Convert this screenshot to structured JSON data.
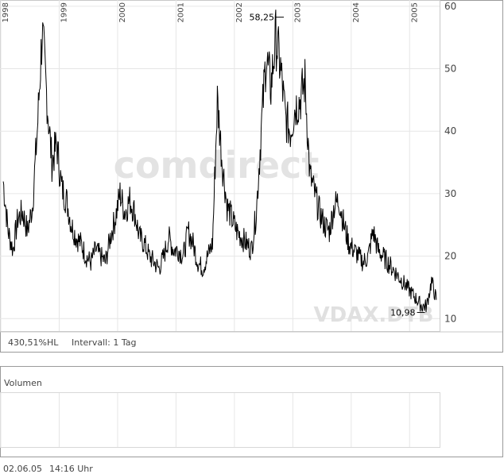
{
  "chart_data": {
    "type": "line",
    "title": "",
    "xlabel": "",
    "ylabel": "",
    "x_axis": {
      "labels": [
        "1998",
        "1999",
        "2000",
        "2001",
        "2002",
        "2003",
        "2004",
        "2005"
      ],
      "range": [
        "1998-01",
        "2005-06"
      ]
    },
    "ylim": [
      8,
      61
    ],
    "yticks": [
      10,
      20,
      30,
      40,
      50,
      60
    ],
    "grid": true,
    "series": [
      {
        "x": [
          "1998-01",
          "1998-02",
          "1998-03",
          "1998-04",
          "1998-05",
          "1998-06",
          "1998-07",
          "1998-08",
          "1998-09",
          "1998-10",
          "1998-11",
          "1998-12",
          "1999-01",
          "1999-02",
          "1999-03",
          "1999-04",
          "1999-05",
          "1999-06",
          "1999-07",
          "1999-08",
          "1999-09",
          "1999-10",
          "1999-11",
          "1999-12",
          "2000-01",
          "2000-02",
          "2000-03",
          "2000-04",
          "2000-05",
          "2000-06",
          "2000-07",
          "2000-08",
          "2000-09",
          "2000-10",
          "2000-11",
          "2000-12",
          "2001-01",
          "2001-02",
          "2001-03",
          "2001-04",
          "2001-05",
          "2001-06",
          "2001-07",
          "2001-08",
          "2001-09",
          "2001-10",
          "2001-11",
          "2001-12",
          "2002-01",
          "2002-02",
          "2002-03",
          "2002-04",
          "2002-05",
          "2002-06",
          "2002-07",
          "2002-08",
          "2002-09",
          "2002-10",
          "2002-11",
          "2002-12",
          "2003-01",
          "2003-02",
          "2003-03",
          "2003-04",
          "2003-05",
          "2003-06",
          "2003-07",
          "2003-08",
          "2003-09",
          "2003-10",
          "2003-11",
          "2003-12",
          "2004-01",
          "2004-02",
          "2004-03",
          "2004-04",
          "2004-05",
          "2004-06",
          "2004-07",
          "2004-08",
          "2004-09",
          "2004-10",
          "2004-11",
          "2004-12",
          "2005-01",
          "2005-02",
          "2005-03",
          "2005-04",
          "2005-05",
          "2005-06"
        ],
        "values": [
          32,
          24,
          21,
          26,
          27,
          24,
          28,
          40,
          56,
          45,
          35,
          38,
          31,
          29,
          25,
          23,
          22,
          20,
          19,
          21,
          20,
          19,
          23,
          26,
          30,
          27,
          29,
          27,
          23,
          22,
          20,
          19,
          18,
          20,
          23,
          21,
          21,
          20,
          24,
          22,
          19,
          18,
          20,
          22,
          45,
          35,
          28,
          26,
          24,
          23,
          22,
          21,
          27,
          40,
          52,
          47,
          55,
          50,
          42,
          40,
          44,
          45,
          48,
          33,
          30,
          27,
          25,
          24,
          28,
          29,
          25,
          22,
          21,
          20,
          19,
          20,
          24,
          21,
          20,
          19,
          18,
          17,
          16,
          15,
          14,
          13,
          12,
          12,
          16,
          13
        ]
      }
    ],
    "annotations": [
      {
        "text": "58,25",
        "x": "2002-10",
        "y": 58.25
      },
      {
        "text": "10,98",
        "x": "2005-03",
        "y": 10.98
      }
    ],
    "footer_info": {
      "range_text": "430,51%HL",
      "interval_text": "Intervall: 1 Tag"
    },
    "watermark": "comdirect",
    "instrument_label": "VDAX.DTB",
    "volume_panel": {
      "label": "Volumen"
    },
    "timestamp": {
      "date": "02.06.05",
      "time": "14:16 Uhr"
    }
  },
  "colors": {
    "line": "#000000",
    "grid": "#e6e6e6",
    "frame": "#9a9a9a",
    "text": "#444444",
    "watermark": "#e3e3e3"
  }
}
